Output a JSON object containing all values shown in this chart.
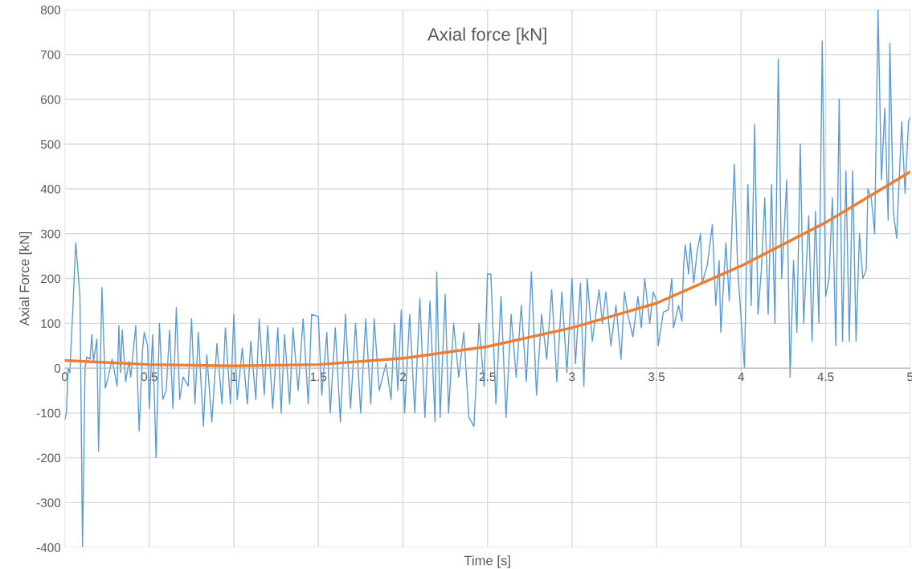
{
  "chart_data": {
    "type": "line",
    "title": "Axial force [kN]",
    "xlabel": "Time [s]",
    "ylabel": "Axial Force [kN]",
    "xlim": [
      0,
      5
    ],
    "ylim": [
      -400,
      800
    ],
    "xticks": [
      0,
      0.5,
      1,
      1.5,
      2,
      2.5,
      3,
      3.5,
      4,
      4.5,
      5
    ],
    "yticks": [
      -400,
      -300,
      -200,
      -100,
      0,
      100,
      200,
      300,
      400,
      500,
      600,
      700,
      800
    ],
    "grid": true,
    "line_style": "solid",
    "marker": "none",
    "series": [
      {
        "color": "#5b9bd5",
        "x": [
          0,
          0.01,
          0.02,
          0.03,
          0.05,
          0.065,
          0.09,
          0.105,
          0.12,
          0.13,
          0.15,
          0.16,
          0.17,
          0.19,
          0.2,
          0.22,
          0.24,
          0.26,
          0.28,
          0.3,
          0.31,
          0.32,
          0.33,
          0.34,
          0.36,
          0.38,
          0.39,
          0.42,
          0.44,
          0.46,
          0.47,
          0.49,
          0.5,
          0.52,
          0.54,
          0.56,
          0.58,
          0.6,
          0.62,
          0.64,
          0.66,
          0.68,
          0.7,
          0.73,
          0.75,
          0.77,
          0.79,
          0.82,
          0.84,
          0.87,
          0.9,
          0.93,
          0.95,
          0.98,
          1.0,
          1.02,
          1.05,
          1.08,
          1.1,
          1.13,
          1.15,
          1.18,
          1.2,
          1.23,
          1.26,
          1.28,
          1.3,
          1.33,
          1.35,
          1.38,
          1.41,
          1.44,
          1.46,
          1.5,
          1.52,
          1.55,
          1.57,
          1.6,
          1.63,
          1.66,
          1.69,
          1.72,
          1.75,
          1.78,
          1.81,
          1.83,
          1.86,
          1.9,
          1.93,
          1.95,
          1.97,
          1.99,
          2.01,
          2.04,
          2.07,
          2.1,
          2.13,
          2.16,
          2.19,
          2.2,
          2.22,
          2.25,
          2.27,
          2.3,
          2.33,
          2.36,
          2.39,
          2.42,
          2.45,
          2.48,
          2.5,
          2.52,
          2.55,
          2.58,
          2.61,
          2.64,
          2.67,
          2.7,
          2.73,
          2.76,
          2.79,
          2.82,
          2.85,
          2.88,
          2.91,
          2.94,
          2.97,
          3.0,
          3.02,
          3.05,
          3.07,
          3.09,
          3.12,
          3.16,
          3.18,
          3.2,
          3.23,
          3.26,
          3.29,
          3.31,
          3.33,
          3.36,
          3.39,
          3.41,
          3.43,
          3.46,
          3.48,
          3.5,
          3.51,
          3.54,
          3.57,
          3.59,
          3.6,
          3.63,
          3.65,
          3.66,
          3.67,
          3.69,
          3.7,
          3.72,
          3.74,
          3.76,
          3.77,
          3.8,
          3.83,
          3.85,
          3.87,
          3.88,
          3.91,
          3.93,
          3.96,
          3.98,
          4.0,
          4.02,
          4.04,
          4.06,
          4.08,
          4.1,
          4.12,
          4.14,
          4.16,
          4.18,
          4.2,
          4.22,
          4.24,
          4.27,
          4.29,
          4.31,
          4.33,
          4.35,
          4.37,
          4.4,
          4.42,
          4.44,
          4.46,
          4.48,
          4.5,
          4.52,
          4.54,
          4.56,
          4.58,
          4.6,
          4.62,
          4.64,
          4.66,
          4.68,
          4.7,
          4.72,
          4.74,
          4.75,
          4.77,
          4.79,
          4.81,
          4.83,
          4.85,
          4.87,
          4.88,
          4.9,
          4.92,
          4.95,
          4.97,
          4.99,
          5.0
        ],
        "values": [
          -115,
          -100,
          0,
          -10,
          150,
          280,
          160,
          -400,
          0,
          25,
          20,
          75,
          15,
          65,
          -185,
          180,
          -45,
          -15,
          20,
          -20,
          -40,
          95,
          -10,
          85,
          -30,
          15,
          -20,
          95,
          -140,
          40,
          80,
          50,
          -90,
          75,
          -200,
          100,
          -70,
          -50,
          85,
          -90,
          135,
          -70,
          -20,
          -40,
          110,
          -80,
          80,
          -130,
          30,
          -120,
          55,
          -80,
          90,
          -80,
          120,
          -70,
          45,
          -80,
          60,
          -70,
          110,
          -60,
          95,
          -90,
          90,
          -100,
          75,
          -80,
          90,
          -50,
          110,
          -80,
          120,
          115,
          -60,
          80,
          -100,
          90,
          -120,
          120,
          -90,
          100,
          -100,
          110,
          -80,
          110,
          -50,
          10,
          -70,
          100,
          -50,
          130,
          -100,
          120,
          -100,
          155,
          -110,
          150,
          -120,
          215,
          -110,
          165,
          -100,
          100,
          -20,
          80,
          -110,
          -130,
          100,
          -40,
          210,
          210,
          -80,
          160,
          -110,
          120,
          -20,
          140,
          -30,
          215,
          -60,
          120,
          20,
          175,
          -30,
          170,
          -10,
          200,
          10,
          190,
          -40,
          200,
          60,
          175,
          100,
          170,
          50,
          140,
          20,
          170,
          120,
          70,
          160,
          90,
          200,
          100,
          170,
          150,
          50,
          125,
          130,
          200,
          90,
          140,
          105,
          230,
          275,
          210,
          280,
          190,
          260,
          300,
          190,
          230,
          320,
          140,
          240,
          80,
          280,
          150,
          455,
          220,
          110,
          0,
          410,
          140,
          545,
          120,
          220,
          380,
          120,
          410,
          100,
          690,
          200,
          420,
          -20,
          240,
          80,
          500,
          100,
          340,
          60,
          350,
          100,
          730,
          160,
          200,
          380,
          50,
          600,
          60,
          440,
          60,
          440,
          60,
          300,
          200,
          220,
          400,
          380,
          300,
          800,
          420,
          580,
          330,
          725,
          350,
          290,
          550,
          390,
          550,
          560
        ]
      },
      {
        "color": "#ed7d31",
        "x": [
          0,
          0.5,
          1,
          1.5,
          2,
          2.5,
          3,
          3.5,
          4,
          4.5,
          5
        ],
        "values": [
          17,
          8,
          5,
          8,
          22,
          48,
          90,
          145,
          228,
          325,
          438
        ]
      }
    ]
  }
}
